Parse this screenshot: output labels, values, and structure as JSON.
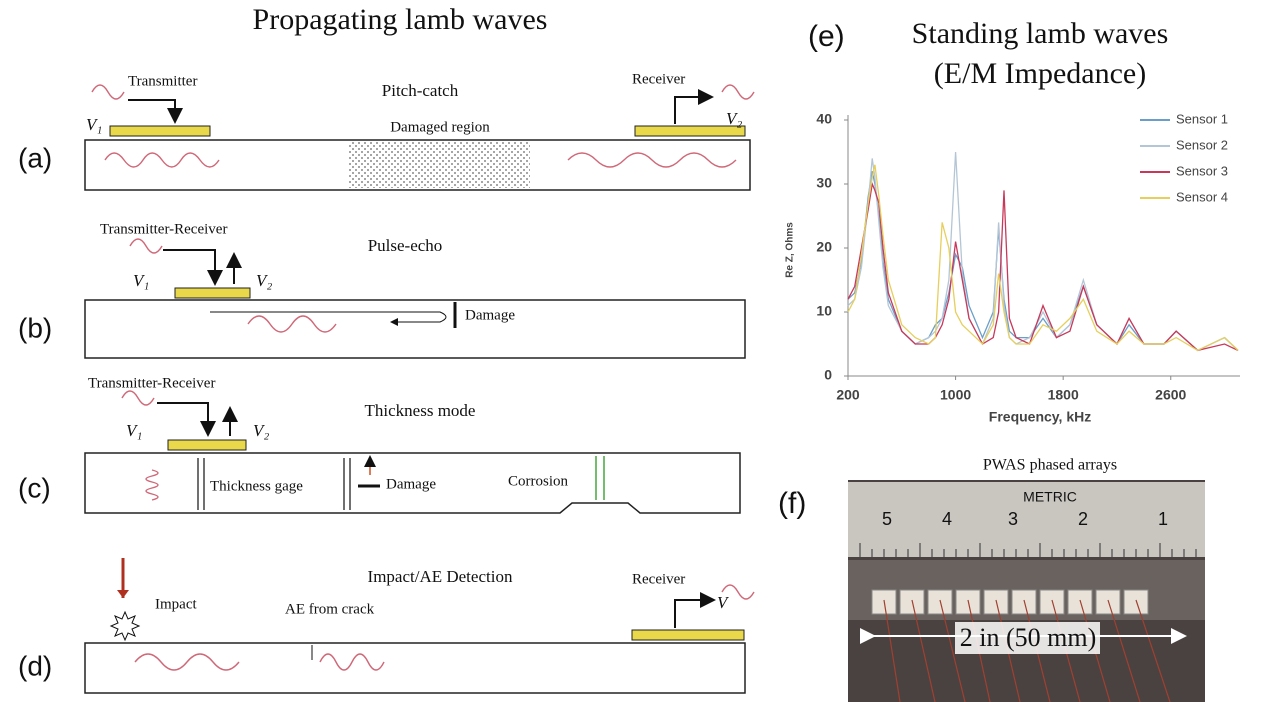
{
  "left": {
    "title": "Propagating lamb waves",
    "a": {
      "label": "(a)",
      "transmitter": "Transmitter",
      "mode": "Pitch-catch",
      "receiver": "Receiver",
      "v1": "V₁",
      "v2": "V₂",
      "region": "Damaged region"
    },
    "b": {
      "label": "(b)",
      "transducer": "Transmitter-Receiver",
      "mode": "Pulse-echo",
      "v1": "V₁",
      "v2": "V₂",
      "damage": "Damage"
    },
    "c": {
      "label": "(c)",
      "transducer": "Transmitter-Receiver",
      "mode": "Thickness mode",
      "v1": "V₁",
      "v2": "V₂",
      "gage": "Thickness gage",
      "damage": "Damage",
      "corrosion": "Corrosion"
    },
    "d": {
      "label": "(d)",
      "mode": "Impact/AE Detection",
      "impact": "Impact",
      "crack": "AE from crack",
      "receiver": "Receiver",
      "v": "V"
    }
  },
  "chart_data": {
    "type": "line",
    "label": "(e)",
    "title": "Standing lamb waves",
    "subtitle": "(E/M Impedance)",
    "x_label": "Frequency, kHz",
    "y_label": "Re Z, Ohms",
    "x": [
      200,
      250,
      300,
      350,
      380,
      400,
      430,
      460,
      500,
      600,
      700,
      800,
      850,
      900,
      950,
      1000,
      1050,
      1100,
      1200,
      1280,
      1320,
      1360,
      1400,
      1450,
      1550,
      1650,
      1750,
      1850,
      1950,
      2050,
      2200,
      2290,
      2400,
      2550,
      2640,
      2800,
      3000,
      3100
    ],
    "series": [
      {
        "name": "Sensor 1",
        "color": "#6a9ec9",
        "values": [
          12,
          13,
          18,
          28,
          32,
          30,
          25,
          18,
          12,
          7,
          5,
          6,
          8,
          9,
          13,
          19,
          17,
          11,
          6,
          10,
          23,
          12,
          7,
          6,
          6,
          9,
          6,
          8,
          14,
          8,
          5,
          8,
          5,
          5,
          7,
          4,
          6,
          4
        ]
      },
      {
        "name": "Sensor 2",
        "color": "#b4c6d6",
        "values": [
          11,
          12,
          17,
          27,
          34,
          31,
          24,
          17,
          11,
          7,
          5,
          6,
          7,
          9,
          15,
          35,
          16,
          9,
          5,
          9,
          24,
          11,
          6,
          5,
          6,
          10,
          6,
          8,
          15,
          8,
          5,
          9,
          5,
          5,
          7,
          4,
          6,
          4
        ]
      },
      {
        "name": "Sensor 3",
        "color": "#c8385a",
        "values": [
          12,
          14,
          20,
          26,
          30,
          29,
          27,
          20,
          13,
          7,
          5,
          5,
          6,
          8,
          12,
          21,
          15,
          9,
          5,
          6,
          10,
          29,
          9,
          6,
          5,
          11,
          6,
          7,
          14,
          8,
          5,
          9,
          5,
          5,
          7,
          4,
          5,
          4
        ]
      },
      {
        "name": "Sensor 4",
        "color": "#e6cf5c",
        "values": [
          10,
          12,
          19,
          27,
          31,
          33,
          28,
          22,
          15,
          8,
          6,
          5,
          6,
          24,
          20,
          10,
          8,
          7,
          5,
          8,
          16,
          10,
          6,
          5,
          5,
          8,
          7,
          9,
          12,
          7,
          5,
          7,
          5,
          5,
          6,
          4,
          6,
          4
        ]
      }
    ],
    "xlim": [
      200,
      3100
    ],
    "ylim": [
      0,
      40
    ],
    "xticks": [
      200,
      1000,
      1800,
      2600
    ],
    "yticks": [
      0,
      10,
      20,
      30,
      40
    ],
    "grid": false
  },
  "photo": {
    "label": "(f)",
    "title": "PWAS phased arrays",
    "metric": "METRIC",
    "numbers": [
      "5",
      "4",
      "3",
      "2",
      "1"
    ],
    "scale": "2 in (50 mm)"
  }
}
